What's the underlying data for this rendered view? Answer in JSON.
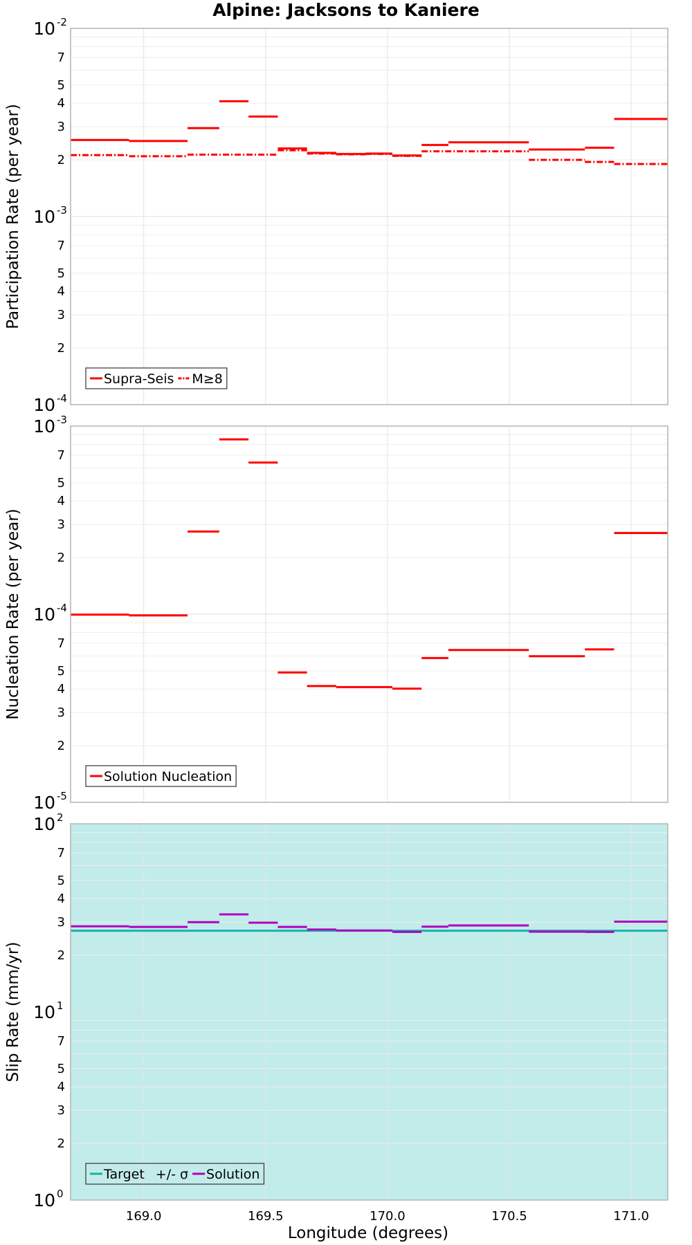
{
  "figure": {
    "title": "Alpine: Jacksons to Kaniere",
    "xlabel": "Longitude (degrees)",
    "xticks": [
      "169.0",
      "169.5",
      "170.0",
      "170.5",
      "171.0"
    ]
  },
  "chart_data": [
    {
      "type": "line",
      "ylabel": "Participation Rate (per year)",
      "yscale": "log",
      "xlim": [
        168.7,
        171.15
      ],
      "ylim": [
        0.0001,
        0.01
      ],
      "grid": true,
      "legend_position": "bottom-left",
      "series": [
        {
          "name": "Supra-Seis",
          "color": "#ff0000",
          "style": "solid",
          "segments": [
            {
              "x": [
                168.7,
                168.94
              ],
              "y": 0.00255
            },
            {
              "x": [
                168.94,
                169.18
              ],
              "y": 0.00252
            },
            {
              "x": [
                169.18,
                169.31
              ],
              "y": 0.00295
            },
            {
              "x": [
                169.31,
                169.43
              ],
              "y": 0.0041
            },
            {
              "x": [
                169.43,
                169.55
              ],
              "y": 0.0034
            },
            {
              "x": [
                169.55,
                169.67
              ],
              "y": 0.0023
            },
            {
              "x": [
                169.67,
                169.79
              ],
              "y": 0.00218
            },
            {
              "x": [
                169.79,
                169.91
              ],
              "y": 0.00215
            },
            {
              "x": [
                169.91,
                170.02
              ],
              "y": 0.00216
            },
            {
              "x": [
                170.02,
                170.14
              ],
              "y": 0.00211
            },
            {
              "x": [
                170.14,
                170.25
              ],
              "y": 0.0024
            },
            {
              "x": [
                170.25,
                170.58
              ],
              "y": 0.00248
            },
            {
              "x": [
                170.58,
                170.81
              ],
              "y": 0.00227
            },
            {
              "x": [
                170.81,
                170.93
              ],
              "y": 0.00232
            },
            {
              "x": [
                170.93,
                171.15
              ],
              "y": 0.0033
            }
          ]
        },
        {
          "name": "M≥8",
          "color": "#ff0000",
          "style": "dashdot",
          "segments": [
            {
              "x": [
                168.7,
                168.94
              ],
              "y": 0.00212
            },
            {
              "x": [
                168.94,
                169.18
              ],
              "y": 0.00209
            },
            {
              "x": [
                169.18,
                169.55
              ],
              "y": 0.00213
            },
            {
              "x": [
                169.55,
                169.67
              ],
              "y": 0.00225
            },
            {
              "x": [
                169.67,
                169.79
              ],
              "y": 0.00216
            },
            {
              "x": [
                169.79,
                169.91
              ],
              "y": 0.00214
            },
            {
              "x": [
                169.91,
                170.02
              ],
              "y": 0.00215
            },
            {
              "x": [
                170.02,
                170.14
              ],
              "y": 0.0021
            },
            {
              "x": [
                170.14,
                170.58
              ],
              "y": 0.00222
            },
            {
              "x": [
                170.58,
                170.81
              ],
              "y": 0.002
            },
            {
              "x": [
                170.81,
                170.93
              ],
              "y": 0.00195
            },
            {
              "x": [
                170.93,
                171.15
              ],
              "y": 0.0019
            }
          ]
        }
      ]
    },
    {
      "type": "line",
      "ylabel": "Nucleation Rate (per year)",
      "yscale": "log",
      "xlim": [
        168.7,
        171.15
      ],
      "ylim": [
        1e-05,
        0.001
      ],
      "grid": true,
      "legend_position": "bottom-left",
      "series": [
        {
          "name": "Solution Nucleation",
          "color": "#ff0000",
          "style": "solid",
          "segments": [
            {
              "x": [
                168.7,
                168.94
              ],
              "y": 9.95e-05
            },
            {
              "x": [
                168.94,
                169.18
              ],
              "y": 9.85e-05
            },
            {
              "x": [
                169.18,
                169.31
              ],
              "y": 0.000275
            },
            {
              "x": [
                169.31,
                169.43
              ],
              "y": 0.00085
            },
            {
              "x": [
                169.43,
                169.55
              ],
              "y": 0.00064
            },
            {
              "x": [
                169.55,
                169.67
              ],
              "y": 4.9e-05
            },
            {
              "x": [
                169.67,
                169.79
              ],
              "y": 4.15e-05
            },
            {
              "x": [
                169.79,
                170.02
              ],
              "y": 4.1e-05
            },
            {
              "x": [
                170.02,
                170.14
              ],
              "y": 4.02e-05
            },
            {
              "x": [
                170.14,
                170.25
              ],
              "y": 5.85e-05
            },
            {
              "x": [
                170.25,
                170.58
              ],
              "y": 6.45e-05
            },
            {
              "x": [
                170.58,
                170.81
              ],
              "y": 5.98e-05
            },
            {
              "x": [
                170.81,
                170.93
              ],
              "y": 6.5e-05
            },
            {
              "x": [
                170.93,
                171.15
              ],
              "y": 0.00027
            }
          ]
        }
      ]
    },
    {
      "type": "line",
      "ylabel": "Slip Rate (mm/yr)",
      "yscale": "log",
      "xlim": [
        168.7,
        171.15
      ],
      "ylim": [
        1,
        100
      ],
      "grid": true,
      "legend_position": "bottom-left",
      "band": {
        "name": "+/- σ",
        "color": "#c2ecea",
        "range": [
          1,
          100
        ]
      },
      "series": [
        {
          "name": "Target",
          "color": "#1ab0b0",
          "style": "solid",
          "segments": [
            {
              "x": [
                168.7,
                171.15
              ],
              "y": 27
            }
          ]
        },
        {
          "name": "Solution",
          "color": "#b000c0",
          "style": "solid",
          "segments": [
            {
              "x": [
                168.7,
                168.94
              ],
              "y": 28.5
            },
            {
              "x": [
                168.94,
                169.18
              ],
              "y": 28.3
            },
            {
              "x": [
                169.18,
                169.31
              ],
              "y": 30
            },
            {
              "x": [
                169.31,
                169.43
              ],
              "y": 33
            },
            {
              "x": [
                169.43,
                169.55
              ],
              "y": 29.8
            },
            {
              "x": [
                169.55,
                169.67
              ],
              "y": 28.3
            },
            {
              "x": [
                169.67,
                169.79
              ],
              "y": 27.4
            },
            {
              "x": [
                169.79,
                170.02
              ],
              "y": 27.1
            },
            {
              "x": [
                170.02,
                170.14
              ],
              "y": 26.6
            },
            {
              "x": [
                170.14,
                170.25
              ],
              "y": 28.4
            },
            {
              "x": [
                170.25,
                170.58
              ],
              "y": 28.8
            },
            {
              "x": [
                170.58,
                170.81
              ],
              "y": 26.7
            },
            {
              "x": [
                170.81,
                170.93
              ],
              "y": 26.6
            },
            {
              "x": [
                170.93,
                171.15
              ],
              "y": 30.2
            }
          ]
        }
      ]
    }
  ]
}
